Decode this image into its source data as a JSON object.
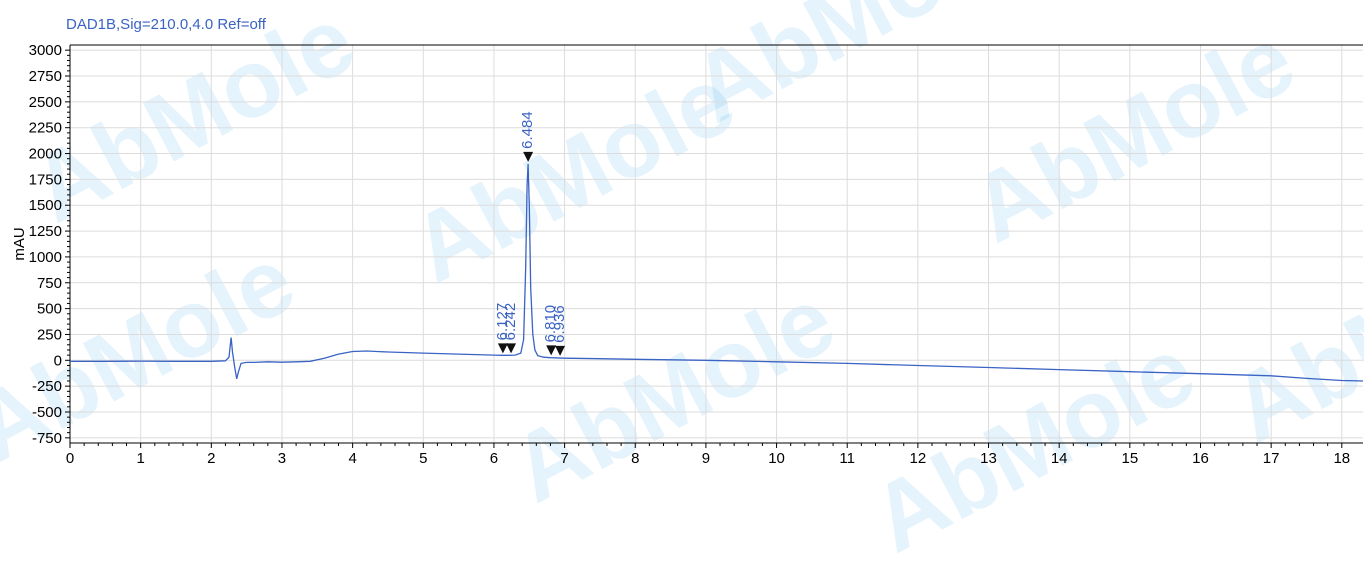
{
  "chart_data": {
    "type": "line",
    "title": "DAD1B,Sig=210.0,4.0  Ref=off",
    "xlabel": "",
    "ylabel": "mAU",
    "xlim": [
      0,
      18.3
    ],
    "ylim": [
      -800,
      3050
    ],
    "x_ticks": [
      0,
      1,
      2,
      3,
      4,
      5,
      6,
      7,
      8,
      9,
      10,
      11,
      12,
      13,
      14,
      15,
      16,
      17,
      18
    ],
    "y_ticks": [
      -750,
      -500,
      -250,
      0,
      250,
      500,
      750,
      1000,
      1250,
      1500,
      1750,
      2000,
      2250,
      2500,
      2750,
      3000
    ],
    "grid": true,
    "series": [
      {
        "color": "#3a63c4",
        "x": [
          0,
          0.5,
          1.0,
          1.5,
          2.0,
          2.2,
          2.25,
          2.28,
          2.3,
          2.33,
          2.36,
          2.38,
          2.42,
          2.5,
          2.6,
          2.8,
          3.0,
          3.2,
          3.4,
          3.6,
          3.8,
          4.0,
          4.2,
          4.5,
          5.0,
          5.5,
          6.0,
          6.1,
          6.2,
          6.3,
          6.38,
          6.42,
          6.45,
          6.47,
          6.484,
          6.5,
          6.52,
          6.55,
          6.58,
          6.62,
          6.7,
          6.8,
          7.0,
          7.5,
          8,
          9,
          10,
          11,
          12,
          13,
          14,
          15,
          16,
          17,
          17.5,
          18,
          18.3
        ],
        "y": [
          -10,
          -10,
          -8,
          -10,
          -10,
          -5,
          30,
          220,
          80,
          -60,
          -180,
          -120,
          -30,
          -20,
          -20,
          -15,
          -18,
          -15,
          -10,
          20,
          60,
          85,
          90,
          80,
          70,
          60,
          50,
          48,
          48,
          50,
          70,
          200,
          900,
          1700,
          1900,
          1500,
          700,
          250,
          100,
          45,
          30,
          25,
          20,
          15,
          10,
          0,
          -15,
          -30,
          -50,
          -70,
          -90,
          -110,
          -130,
          -150,
          -175,
          -195,
          -200
        ]
      }
    ],
    "peak_labels": [
      {
        "label": "6.127",
        "x": 6.127,
        "y": 48
      },
      {
        "label": "6.242",
        "x": 6.242,
        "y": 48
      },
      {
        "label": "6.484",
        "x": 6.484,
        "y": 1900
      },
      {
        "label": "6.810",
        "x": 6.81,
        "y": 28
      },
      {
        "label": "6.936",
        "x": 6.936,
        "y": 24
      }
    ]
  },
  "watermarks": [
    "AbMole",
    "AbMole",
    "AbMole",
    "AbMole",
    "AbMole",
    "AbMole",
    "AbMole",
    "AbMole"
  ]
}
